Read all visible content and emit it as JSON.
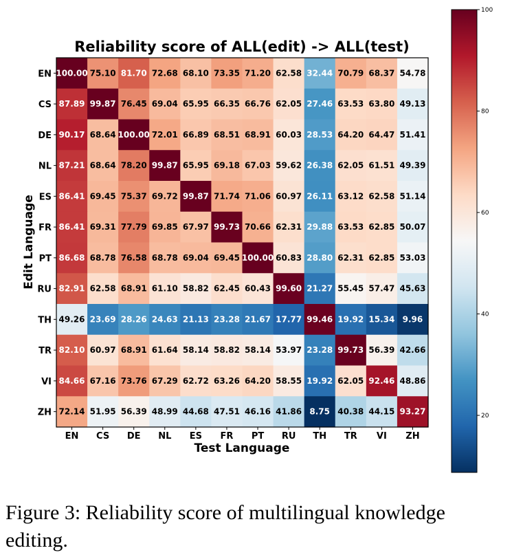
{
  "caption": "Figure 3: Reliability score of multilingual knowledge editing.",
  "chart_data": {
    "type": "heatmap",
    "title": "Reliability score of ALL(edit) -> ALL(test)",
    "xlabel": "Test Language",
    "ylabel": "Edit Language",
    "x_categories": [
      "EN",
      "CS",
      "DE",
      "NL",
      "ES",
      "FR",
      "PT",
      "RU",
      "TH",
      "TR",
      "VI",
      "ZH"
    ],
    "y_categories": [
      "EN",
      "CS",
      "DE",
      "NL",
      "ES",
      "FR",
      "PT",
      "RU",
      "TH",
      "TR",
      "VI",
      "ZH"
    ],
    "values": [
      [
        100.0,
        75.1,
        81.7,
        72.68,
        68.1,
        73.35,
        71.2,
        62.58,
        32.44,
        70.79,
        68.37,
        54.78
      ],
      [
        87.89,
        99.87,
        76.45,
        69.04,
        65.95,
        66.35,
        66.76,
        62.05,
        27.46,
        63.53,
        63.8,
        49.13
      ],
      [
        90.17,
        68.64,
        100.0,
        72.01,
        66.89,
        68.51,
        68.91,
        60.03,
        28.53,
        64.2,
        64.47,
        51.41
      ],
      [
        87.21,
        68.64,
        78.2,
        99.87,
        65.95,
        69.18,
        67.03,
        59.62,
        26.38,
        62.05,
        61.51,
        49.39
      ],
      [
        86.41,
        69.45,
        75.37,
        69.72,
        99.87,
        71.74,
        71.06,
        60.97,
        26.11,
        63.12,
        62.58,
        51.14
      ],
      [
        86.41,
        69.31,
        77.79,
        69.85,
        67.97,
        99.73,
        70.66,
        62.31,
        29.88,
        63.53,
        62.85,
        50.07
      ],
      [
        86.68,
        68.78,
        76.58,
        68.78,
        69.04,
        69.45,
        100.0,
        60.83,
        28.8,
        62.31,
        62.85,
        53.03
      ],
      [
        82.91,
        62.58,
        68.91,
        61.1,
        58.82,
        62.45,
        60.43,
        99.6,
        21.27,
        55.45,
        57.47,
        45.63
      ],
      [
        49.26,
        23.69,
        28.26,
        24.63,
        21.13,
        23.28,
        21.67,
        17.77,
        99.46,
        19.92,
        15.34,
        9.96
      ],
      [
        82.1,
        60.97,
        68.91,
        61.64,
        58.14,
        58.82,
        58.14,
        53.97,
        23.28,
        99.73,
        56.39,
        42.66
      ],
      [
        84.66,
        67.16,
        73.76,
        67.29,
        62.72,
        63.26,
        64.2,
        58.55,
        19.92,
        62.05,
        92.46,
        48.86
      ],
      [
        72.14,
        51.95,
        56.39,
        48.99,
        44.68,
        47.51,
        46.16,
        41.86,
        8.75,
        40.38,
        44.15,
        93.27
      ]
    ],
    "colormap": "RdBu_r",
    "colors": {
      "low": "#053061",
      "mid": "#f7f7f7",
      "high": "#67001f"
    },
    "colorbar": {
      "range": [
        8.75,
        100
      ],
      "ticks": [
        20,
        40,
        60,
        80,
        100
      ]
    },
    "legend_placement": "right"
  }
}
